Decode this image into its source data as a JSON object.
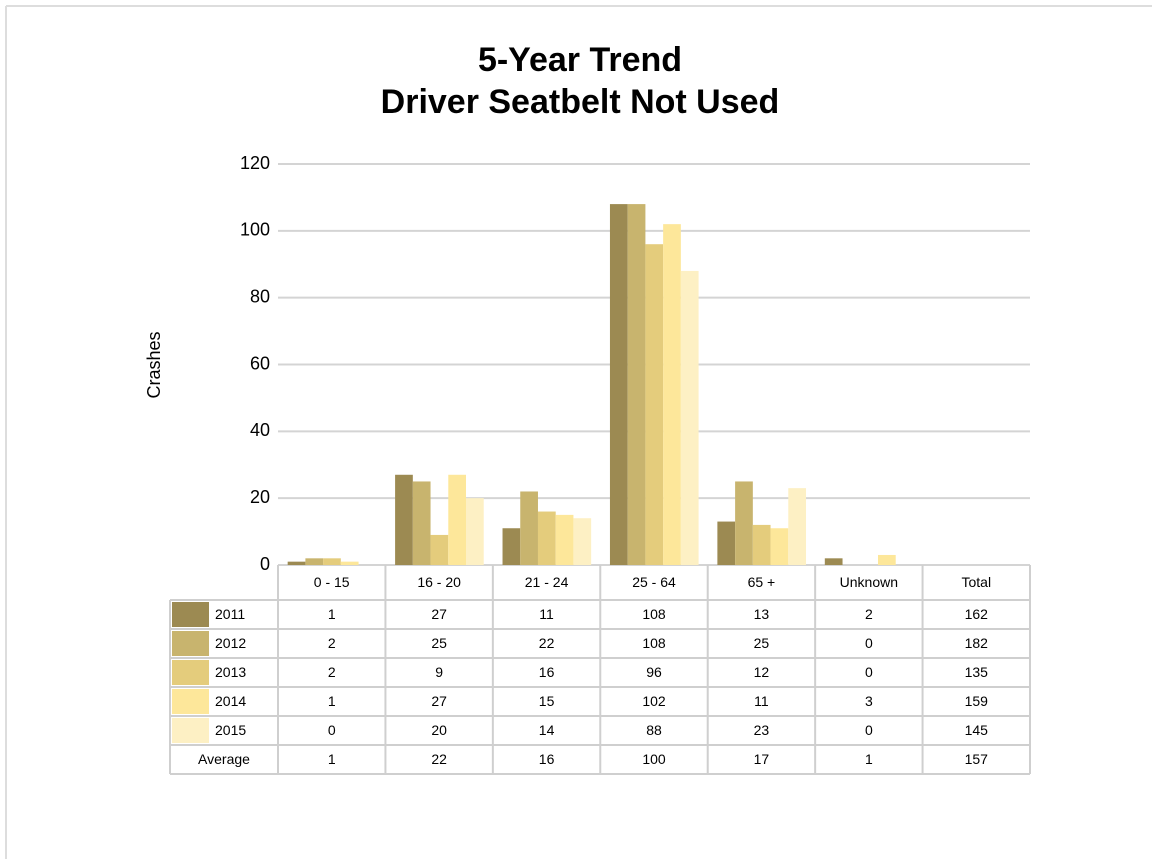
{
  "chart_data": {
    "type": "bar",
    "title": [
      "5-Year Trend",
      "Driver Seatbelt Not Used"
    ],
    "y_label": "Crashes",
    "categories": [
      "0 - 15",
      "16 - 20",
      "21 - 24",
      "25 - 64",
      "65 +",
      "Unknown"
    ],
    "total_label": "Total",
    "series": [
      {
        "name": "2011",
        "color": "#9c8a52",
        "values": [
          1,
          27,
          11,
          108,
          13,
          2
        ],
        "total": 162
      },
      {
        "name": "2012",
        "color": "#c8b46e",
        "values": [
          2,
          25,
          22,
          108,
          25,
          0
        ],
        "total": 182
      },
      {
        "name": "2013",
        "color": "#e4cc7c",
        "values": [
          2,
          9,
          16,
          96,
          12,
          0
        ],
        "total": 135
      },
      {
        "name": "2014",
        "color": "#fde79a",
        "values": [
          1,
          27,
          15,
          102,
          11,
          3
        ],
        "total": 159
      },
      {
        "name": "2015",
        "color": "#fdf0c4",
        "values": [
          0,
          20,
          14,
          88,
          23,
          0
        ],
        "total": 145
      }
    ],
    "average": {
      "name": "Average",
      "values": [
        1,
        22,
        16,
        100,
        17,
        1
      ],
      "total": 157
    },
    "ylim": [
      0,
      120
    ],
    "yticks": [
      0,
      20,
      40,
      60,
      80,
      100,
      120
    ],
    "grid": true
  }
}
